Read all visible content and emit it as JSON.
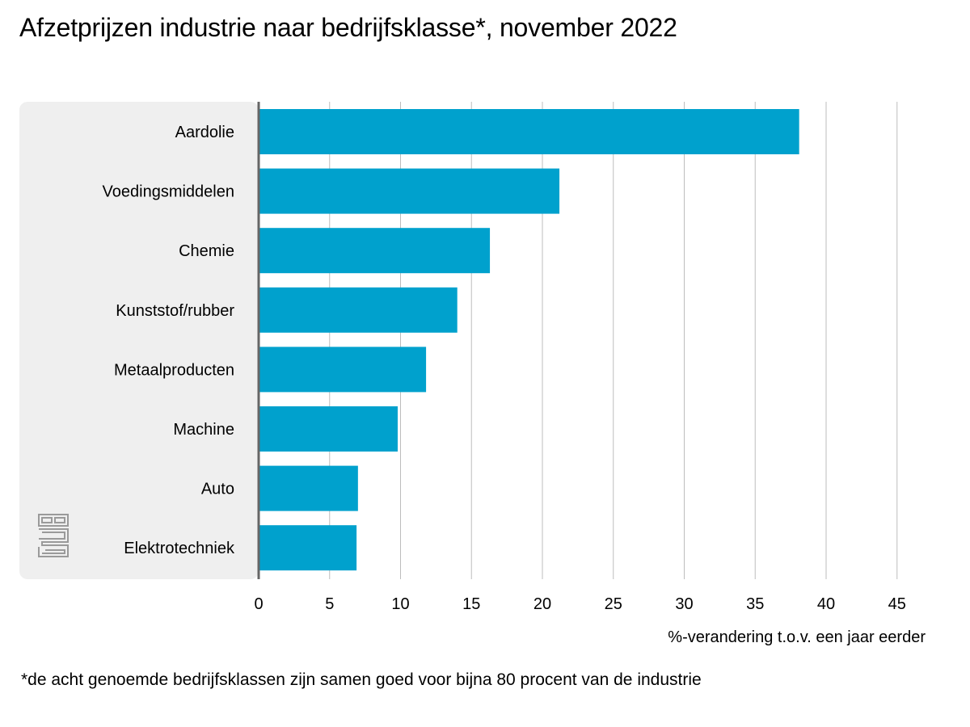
{
  "title": "Afzetprijzen industrie naar bedrijfsklasse*, november 2022",
  "footnote": "*de acht genoemde bedrijfsklassen zijn samen goed voor bijna 80 procent van de industrie",
  "logo": {
    "icon": "cbs-logo-icon",
    "text": "cbs"
  },
  "colors": {
    "bar": "#00a1cd",
    "panel": "#efefef",
    "grid": "#bdbdbd",
    "axis": "#666666"
  },
  "chart_data": {
    "type": "bar",
    "orientation": "horizontal",
    "categories": [
      "Aardolie",
      "Voedingsmiddelen",
      "Chemie",
      "Kunststof/rubber",
      "Metaalproducten",
      "Machine",
      "Auto",
      "Elektrotechniek"
    ],
    "values": [
      38.1,
      21.2,
      16.3,
      14.0,
      11.8,
      9.8,
      7.0,
      6.9
    ],
    "xlabel": "%-verandering t.o.v. een jaar eerder",
    "ylabel": "",
    "xlim": [
      0,
      45
    ],
    "xticks": [
      "0",
      "5",
      "10",
      "15",
      "20",
      "25",
      "30",
      "35",
      "40",
      "45"
    ],
    "grid": true
  }
}
